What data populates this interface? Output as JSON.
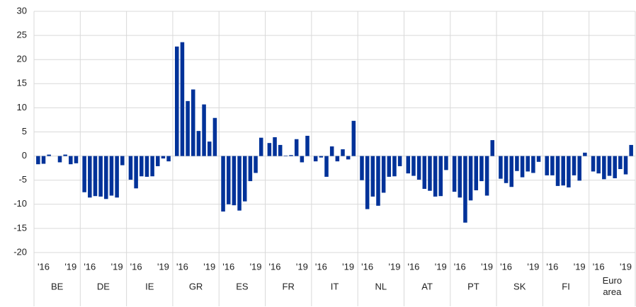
{
  "chart_data": {
    "type": "bar",
    "categories": [
      "BE",
      "DE",
      "IE",
      "GR",
      "ES",
      "FR",
      "IT",
      "NL",
      "AT",
      "PT",
      "SK",
      "FI",
      "Euro area"
    ],
    "subcategories": [
      null,
      "'16",
      null,
      null,
      null,
      null,
      "'19",
      null
    ],
    "values": [
      [
        -1.7,
        -1.6,
        0.3,
        0,
        -1.3,
        0.3,
        -1.7,
        -1.5
      ],
      [
        -7.5,
        -8.6,
        -8.3,
        -8.4,
        -8.9,
        -8.2,
        -8.6,
        -1.9
      ],
      [
        -4.9,
        -6.7,
        -4.2,
        -4.3,
        -4.2,
        -2.1,
        -0.5,
        -1.1
      ],
      [
        22.7,
        23.6,
        11.4,
        13.8,
        5.2,
        10.7,
        3.0,
        7.9
      ],
      [
        -11.5,
        -10.0,
        -10.2,
        -11.3,
        -9.4,
        -5.2,
        -3.5,
        3.8
      ],
      [
        2.7,
        3.9,
        2.3,
        0.1,
        0.2,
        3.5,
        -1.3,
        4.2
      ],
      [
        -1.1,
        -0.3,
        -4.3,
        2.0,
        -1.1,
        1.4,
        -0.7,
        7.3
      ],
      [
        -5.0,
        -11.0,
        -8.4,
        -10.3,
        -7.6,
        -4.3,
        -4.2,
        -2.1
      ],
      [
        -3.6,
        -4.1,
        -4.9,
        -6.8,
        -7.2,
        -8.4,
        -8.3,
        -2.9
      ],
      [
        -7.4,
        -8.6,
        -13.8,
        -9.2,
        -7.1,
        -5.2,
        -8.2,
        3.3
      ],
      [
        -4.7,
        -5.6,
        -6.4,
        -3.1,
        -4.4,
        -3.2,
        -3.5,
        -1.2
      ],
      [
        -4.0,
        -4.0,
        -6.2,
        -6.1,
        -6.5,
        -4.0,
        -5.1,
        0.7
      ],
      [
        -3.2,
        -3.6,
        -4.8,
        -4.1,
        -4.6,
        -2.7,
        -3.8,
        2.3
      ]
    ],
    "color": "#003299",
    "ylim": [
      -20,
      30
    ],
    "yticks": [
      -20,
      -15,
      -10,
      -5,
      0,
      5,
      10,
      15,
      20,
      25,
      30
    ],
    "grid": true
  }
}
